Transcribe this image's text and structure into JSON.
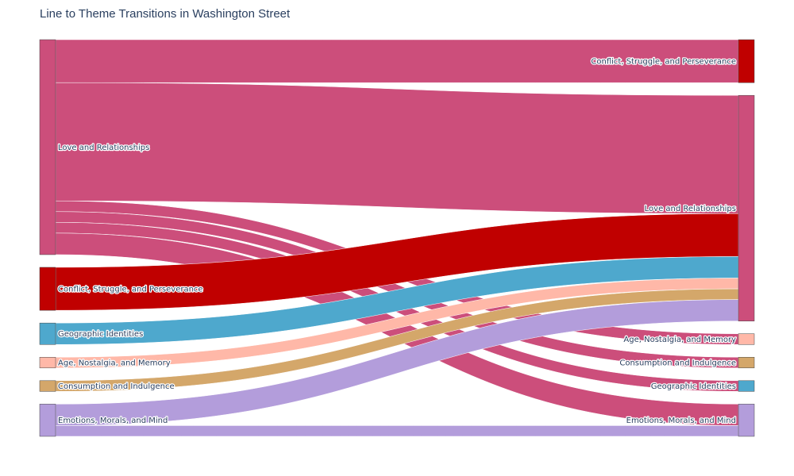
{
  "chart_data": {
    "type": "sankey",
    "title": "Line to Theme Transitions in Washington Street",
    "themes": [
      {
        "id": "love",
        "name": "Love and Relationships",
        "color": "#cc4e7b"
      },
      {
        "id": "conflict",
        "name": "Conflict, Struggle, and Perseverance",
        "color": "#c00000"
      },
      {
        "id": "geo",
        "name": "Geographic Identities",
        "color": "#4ea8cd"
      },
      {
        "id": "age",
        "name": "Age, Nostalgia, and Memory",
        "color": "#ffb8a8"
      },
      {
        "id": "consumption",
        "name": "Consumption and Indulgence",
        "color": "#d4a76a"
      },
      {
        "id": "emotions",
        "name": "Emotions, Morals, and Mind",
        "color": "#b39ddb"
      }
    ],
    "source_order": [
      "love",
      "conflict",
      "geo",
      "age",
      "consumption",
      "emotions"
    ],
    "target_order": [
      "conflict",
      "love",
      "age",
      "consumption",
      "geo",
      "emotions"
    ],
    "links": [
      {
        "source": "love",
        "target": "conflict",
        "value": 8
      },
      {
        "source": "love",
        "target": "love",
        "value": 22
      },
      {
        "source": "love",
        "target": "age",
        "value": 2
      },
      {
        "source": "love",
        "target": "consumption",
        "value": 2
      },
      {
        "source": "love",
        "target": "geo",
        "value": 2
      },
      {
        "source": "love",
        "target": "emotions",
        "value": 4
      },
      {
        "source": "conflict",
        "target": "love",
        "value": 8
      },
      {
        "source": "geo",
        "target": "love",
        "value": 4
      },
      {
        "source": "age",
        "target": "love",
        "value": 2
      },
      {
        "source": "consumption",
        "target": "love",
        "value": 2
      },
      {
        "source": "emotions",
        "target": "love",
        "value": 4
      },
      {
        "source": "emotions",
        "target": "emotions",
        "value": 2
      }
    ]
  }
}
